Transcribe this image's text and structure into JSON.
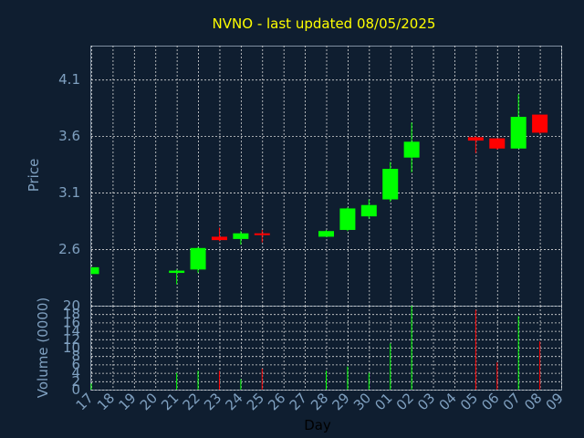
{
  "chart_data": {
    "type": "candlestick",
    "title": "NVNO - last updated 08/05/2025",
    "price_panel": {
      "ylabel": "Price",
      "yticks": [
        "2.6",
        "3.1",
        "3.6",
        "4.1"
      ],
      "ylim": [
        2.1,
        4.4
      ]
    },
    "volume_panel": {
      "ylabel": "Volume (0000)",
      "yticks": [
        "0",
        "2",
        "4",
        "6",
        "8",
        "10",
        "12",
        "14",
        "16",
        "18",
        "20"
      ],
      "ylim": [
        0,
        20
      ]
    },
    "xlabel": "Day",
    "categories": [
      "17",
      "18",
      "19",
      "20",
      "21",
      "22",
      "23",
      "24",
      "25",
      "26",
      "27",
      "28",
      "29",
      "30",
      "01",
      "02",
      "03",
      "04",
      "05",
      "06",
      "07",
      "08",
      "09"
    ],
    "candles": [
      {
        "day": "17",
        "open": 2.38,
        "high": 2.44,
        "low": 2.38,
        "close": 2.44,
        "volume": 1.5
      },
      {
        "day": "21",
        "open": 2.39,
        "high": 2.42,
        "low": 2.29,
        "close": 2.41,
        "volume": 4
      },
      {
        "day": "22",
        "open": 2.42,
        "high": 2.62,
        "low": 2.39,
        "close": 2.61,
        "volume": 4.5
      },
      {
        "day": "23",
        "open": 2.71,
        "high": 2.79,
        "low": 2.67,
        "close": 2.68,
        "volume": 4.5
      },
      {
        "day": "24",
        "open": 2.69,
        "high": 2.76,
        "low": 2.64,
        "close": 2.74,
        "volume": 2.5
      },
      {
        "day": "25",
        "open": 2.74,
        "high": 2.77,
        "low": 2.66,
        "close": 2.73,
        "volume": 5
      },
      {
        "day": "28",
        "open": 2.71,
        "high": 2.77,
        "low": 2.71,
        "close": 2.76,
        "volume": 4.5
      },
      {
        "day": "29",
        "open": 2.77,
        "high": 2.97,
        "low": 2.76,
        "close": 2.96,
        "volume": 5.5
      },
      {
        "day": "30",
        "open": 2.89,
        "high": 3.04,
        "low": 2.87,
        "close": 2.99,
        "volume": 4
      },
      {
        "day": "01",
        "open": 3.04,
        "high": 3.37,
        "low": 3.02,
        "close": 3.31,
        "volume": 11
      },
      {
        "day": "02",
        "open": 3.41,
        "high": 3.72,
        "low": 3.28,
        "close": 3.55,
        "volume": 20
      },
      {
        "day": "05",
        "open": 3.59,
        "high": 3.6,
        "low": 3.45,
        "close": 3.56,
        "volume": 19
      },
      {
        "day": "06",
        "open": 3.58,
        "high": 3.58,
        "low": 3.48,
        "close": 3.49,
        "volume": 6.5
      },
      {
        "day": "07",
        "open": 3.49,
        "high": 3.97,
        "low": 3.49,
        "close": 3.77,
        "volume": 17.5
      },
      {
        "day": "08",
        "open": 3.79,
        "high": 3.79,
        "low": 3.62,
        "close": 3.63,
        "volume": 11.5
      }
    ],
    "colors": {
      "up": "#00ff00",
      "down": "#ff0000",
      "background": "#0f1e30",
      "grid": "#d9d9d9",
      "title": "#ffff00",
      "ticks": "#7fa0c0"
    },
    "grid": true
  }
}
